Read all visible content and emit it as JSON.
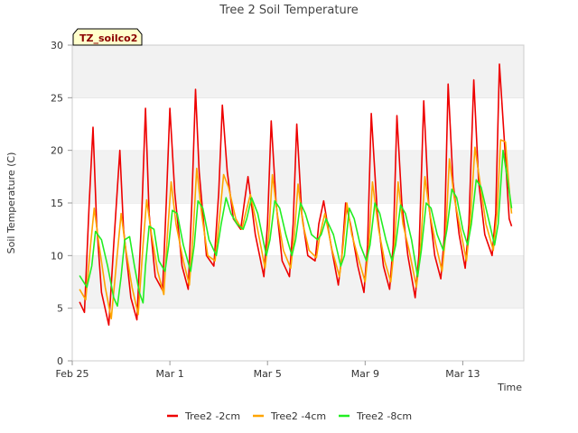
{
  "chart_data": {
    "type": "line",
    "title": "Tree 2 Soil Temperature",
    "xlabel": "Time",
    "ylabel": "Soil Temperature (C)",
    "badge": "TZ_soilco2",
    "ylim": [
      0,
      30
    ],
    "yticks": [
      0,
      5,
      10,
      15,
      20,
      25,
      30
    ],
    "xlim": [
      0,
      18.5
    ],
    "xticks": [
      {
        "value": 0,
        "label": "Feb 25"
      },
      {
        "value": 4,
        "label": "Mar 1"
      },
      {
        "value": 8,
        "label": "Mar 5"
      },
      {
        "value": 12,
        "label": "Mar 9"
      },
      {
        "value": 16,
        "label": "Mar 13"
      }
    ],
    "grid": "horizontal bands",
    "legend_position": "bottom",
    "colors": {
      "Tree2 -2cm": "#ee0000",
      "Tree2 -4cm": "#ffa500",
      "Tree2 -8cm": "#22ee22"
    },
    "series": [
      {
        "name": "Tree2 -2cm",
        "color": "#ee0000",
        "points": [
          [
            0.3,
            5.6
          ],
          [
            0.5,
            4.6
          ],
          [
            0.7,
            15.2
          ],
          [
            0.85,
            22.2
          ],
          [
            1.0,
            13.0
          ],
          [
            1.2,
            6.5
          ],
          [
            1.5,
            3.4
          ],
          [
            1.7,
            11.0
          ],
          [
            1.95,
            20.0
          ],
          [
            2.1,
            12.5
          ],
          [
            2.4,
            6.0
          ],
          [
            2.65,
            3.9
          ],
          [
            2.85,
            14.0
          ],
          [
            3.0,
            24.0
          ],
          [
            3.15,
            14.0
          ],
          [
            3.4,
            8.0
          ],
          [
            3.7,
            6.7
          ],
          [
            3.85,
            15.0
          ],
          [
            4.0,
            24.0
          ],
          [
            4.2,
            16.0
          ],
          [
            4.5,
            9.0
          ],
          [
            4.75,
            6.8
          ],
          [
            4.9,
            15.0
          ],
          [
            5.05,
            25.8
          ],
          [
            5.2,
            18.0
          ],
          [
            5.5,
            10.0
          ],
          [
            5.8,
            9.0
          ],
          [
            6.0,
            16.0
          ],
          [
            6.15,
            24.3
          ],
          [
            6.35,
            18.0
          ],
          [
            6.6,
            13.5
          ],
          [
            6.9,
            12.5
          ],
          [
            7.05,
            15.0
          ],
          [
            7.2,
            17.5
          ],
          [
            7.5,
            12.0
          ],
          [
            7.85,
            8.0
          ],
          [
            8.0,
            13.0
          ],
          [
            8.15,
            22.8
          ],
          [
            8.35,
            15.0
          ],
          [
            8.6,
            9.5
          ],
          [
            8.9,
            8.0
          ],
          [
            9.05,
            13.0
          ],
          [
            9.2,
            22.5
          ],
          [
            9.4,
            14.0
          ],
          [
            9.65,
            10.0
          ],
          [
            9.95,
            9.5
          ],
          [
            10.1,
            13.0
          ],
          [
            10.3,
            15.2
          ],
          [
            10.6,
            11.0
          ],
          [
            10.9,
            7.2
          ],
          [
            11.05,
            10.0
          ],
          [
            11.2,
            15.0
          ],
          [
            11.4,
            13.0
          ],
          [
            11.7,
            9.0
          ],
          [
            11.95,
            6.5
          ],
          [
            12.1,
            11.0
          ],
          [
            12.25,
            23.5
          ],
          [
            12.5,
            14.0
          ],
          [
            12.75,
            9.0
          ],
          [
            13.0,
            6.8
          ],
          [
            13.15,
            11.0
          ],
          [
            13.3,
            23.3
          ],
          [
            13.5,
            15.0
          ],
          [
            13.75,
            10.0
          ],
          [
            14.05,
            6.0
          ],
          [
            14.2,
            10.0
          ],
          [
            14.4,
            24.7
          ],
          [
            14.6,
            15.0
          ],
          [
            14.85,
            10.0
          ],
          [
            15.1,
            7.8
          ],
          [
            15.25,
            12.0
          ],
          [
            15.4,
            26.3
          ],
          [
            15.6,
            17.0
          ],
          [
            15.85,
            12.0
          ],
          [
            16.1,
            8.8
          ],
          [
            16.25,
            13.0
          ],
          [
            16.45,
            26.7
          ],
          [
            16.65,
            17.0
          ],
          [
            16.9,
            12.0
          ],
          [
            17.2,
            10.0
          ],
          [
            17.35,
            14.0
          ],
          [
            17.5,
            28.2
          ],
          [
            17.7,
            21.0
          ],
          [
            17.9,
            13.5
          ],
          [
            18.0,
            12.8
          ]
        ]
      },
      {
        "name": "Tree2 -4cm",
        "color": "#ffa500",
        "points": [
          [
            0.3,
            6.8
          ],
          [
            0.55,
            5.8
          ],
          [
            0.75,
            11.0
          ],
          [
            0.9,
            14.5
          ],
          [
            1.1,
            11.0
          ],
          [
            1.35,
            7.0
          ],
          [
            1.6,
            4.0
          ],
          [
            1.8,
            9.0
          ],
          [
            2.0,
            14.0
          ],
          [
            2.2,
            10.5
          ],
          [
            2.45,
            7.0
          ],
          [
            2.7,
            4.4
          ],
          [
            2.9,
            11.0
          ],
          [
            3.05,
            15.3
          ],
          [
            3.25,
            12.0
          ],
          [
            3.5,
            8.5
          ],
          [
            3.75,
            6.3
          ],
          [
            3.9,
            12.0
          ],
          [
            4.05,
            17.0
          ],
          [
            4.25,
            13.0
          ],
          [
            4.55,
            9.5
          ],
          [
            4.8,
            7.2
          ],
          [
            4.95,
            12.0
          ],
          [
            5.1,
            18.3
          ],
          [
            5.3,
            14.0
          ],
          [
            5.55,
            10.0
          ],
          [
            5.85,
            9.5
          ],
          [
            6.05,
            14.0
          ],
          [
            6.2,
            17.7
          ],
          [
            6.4,
            16.5
          ],
          [
            6.7,
            13.5
          ],
          [
            6.95,
            12.5
          ],
          [
            7.1,
            14.0
          ],
          [
            7.3,
            15.8
          ],
          [
            7.55,
            13.0
          ],
          [
            7.9,
            8.8
          ],
          [
            8.05,
            12.0
          ],
          [
            8.2,
            17.7
          ],
          [
            8.4,
            14.0
          ],
          [
            8.65,
            10.5
          ],
          [
            8.95,
            8.8
          ],
          [
            9.1,
            12.0
          ],
          [
            9.25,
            16.8
          ],
          [
            9.45,
            13.0
          ],
          [
            9.7,
            10.5
          ],
          [
            10.0,
            9.8
          ],
          [
            10.15,
            12.0
          ],
          [
            10.35,
            14.0
          ],
          [
            10.65,
            10.5
          ],
          [
            10.95,
            8.0
          ],
          [
            11.1,
            11.0
          ],
          [
            11.25,
            15.0
          ],
          [
            11.45,
            12.0
          ],
          [
            11.75,
            9.5
          ],
          [
            12.0,
            7.5
          ],
          [
            12.15,
            11.0
          ],
          [
            12.3,
            17.0
          ],
          [
            12.55,
            12.5
          ],
          [
            12.8,
            9.5
          ],
          [
            13.05,
            7.5
          ],
          [
            13.2,
            11.0
          ],
          [
            13.35,
            17.0
          ],
          [
            13.55,
            13.0
          ],
          [
            13.8,
            10.5
          ],
          [
            14.1,
            7.0
          ],
          [
            14.25,
            10.0
          ],
          [
            14.45,
            17.5
          ],
          [
            14.65,
            14.0
          ],
          [
            14.9,
            11.0
          ],
          [
            15.15,
            8.5
          ],
          [
            15.3,
            12.0
          ],
          [
            15.45,
            19.2
          ],
          [
            15.65,
            15.5
          ],
          [
            15.9,
            12.5
          ],
          [
            16.15,
            9.5
          ],
          [
            16.3,
            13.0
          ],
          [
            16.5,
            20.3
          ],
          [
            16.7,
            17.0
          ],
          [
            16.95,
            13.0
          ],
          [
            17.25,
            10.5
          ],
          [
            17.4,
            14.0
          ],
          [
            17.55,
            21.0
          ],
          [
            17.75,
            20.8
          ],
          [
            17.95,
            15.0
          ],
          [
            18.0,
            14.0
          ]
        ]
      },
      {
        "name": "Tree2 -8cm",
        "color": "#22ee22",
        "points": [
          [
            0.3,
            8.1
          ],
          [
            0.6,
            7.0
          ],
          [
            0.8,
            9.0
          ],
          [
            0.95,
            12.3
          ],
          [
            1.2,
            11.5
          ],
          [
            1.45,
            9.0
          ],
          [
            1.7,
            6.0
          ],
          [
            1.85,
            5.2
          ],
          [
            2.0,
            8.0
          ],
          [
            2.15,
            11.5
          ],
          [
            2.35,
            11.8
          ],
          [
            2.55,
            9.0
          ],
          [
            2.75,
            6.5
          ],
          [
            2.9,
            5.5
          ],
          [
            3.0,
            9.0
          ],
          [
            3.15,
            12.8
          ],
          [
            3.35,
            12.5
          ],
          [
            3.55,
            9.5
          ],
          [
            3.8,
            8.5
          ],
          [
            3.95,
            11.0
          ],
          [
            4.1,
            14.3
          ],
          [
            4.3,
            14.0
          ],
          [
            4.55,
            11.0
          ],
          [
            4.85,
            8.5
          ],
          [
            5.0,
            11.0
          ],
          [
            5.15,
            15.2
          ],
          [
            5.35,
            14.5
          ],
          [
            5.6,
            11.5
          ],
          [
            5.9,
            10.0
          ],
          [
            6.1,
            13.0
          ],
          [
            6.3,
            15.5
          ],
          [
            6.5,
            14.0
          ],
          [
            6.75,
            13.0
          ],
          [
            7.0,
            12.5
          ],
          [
            7.15,
            13.5
          ],
          [
            7.35,
            15.5
          ],
          [
            7.6,
            14.0
          ],
          [
            7.95,
            10.0
          ],
          [
            8.1,
            11.5
          ],
          [
            8.3,
            15.2
          ],
          [
            8.5,
            14.5
          ],
          [
            8.75,
            12.0
          ],
          [
            9.0,
            10.0
          ],
          [
            9.15,
            11.5
          ],
          [
            9.35,
            15.0
          ],
          [
            9.55,
            14.0
          ],
          [
            9.8,
            12.0
          ],
          [
            10.05,
            11.5
          ],
          [
            10.2,
            12.0
          ],
          [
            10.4,
            13.5
          ],
          [
            10.7,
            12.0
          ],
          [
            11.0,
            9.0
          ],
          [
            11.15,
            10.0
          ],
          [
            11.35,
            14.5
          ],
          [
            11.55,
            13.5
          ],
          [
            11.8,
            11.0
          ],
          [
            12.05,
            9.5
          ],
          [
            12.2,
            11.0
          ],
          [
            12.4,
            15.0
          ],
          [
            12.6,
            14.0
          ],
          [
            12.85,
            11.5
          ],
          [
            13.1,
            9.5
          ],
          [
            13.25,
            11.0
          ],
          [
            13.45,
            14.8
          ],
          [
            13.65,
            14.0
          ],
          [
            13.9,
            11.5
          ],
          [
            14.15,
            8.0
          ],
          [
            14.3,
            10.5
          ],
          [
            14.5,
            15.0
          ],
          [
            14.7,
            14.5
          ],
          [
            14.95,
            12.0
          ],
          [
            15.2,
            10.5
          ],
          [
            15.35,
            12.5
          ],
          [
            15.55,
            16.3
          ],
          [
            15.75,
            15.5
          ],
          [
            16.0,
            12.5
          ],
          [
            16.2,
            11.0
          ],
          [
            16.35,
            13.0
          ],
          [
            16.55,
            17.2
          ],
          [
            16.75,
            16.5
          ],
          [
            17.0,
            14.0
          ],
          [
            17.3,
            11.0
          ],
          [
            17.45,
            13.0
          ],
          [
            17.65,
            20.0
          ],
          [
            17.85,
            17.0
          ],
          [
            18.0,
            14.5
          ]
        ]
      }
    ]
  }
}
